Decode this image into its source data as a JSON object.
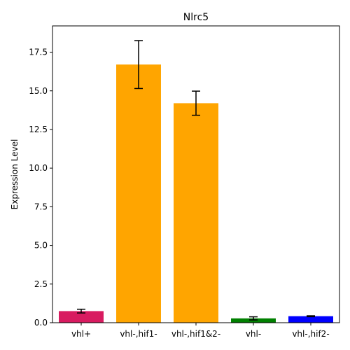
{
  "chart_data": {
    "type": "bar",
    "title": "Nlrc5",
    "xlabel": "",
    "ylabel": "Expression Level",
    "ylim": [
      0,
      19.2
    ],
    "yticks": [
      "0.0",
      "2.5",
      "5.0",
      "7.5",
      "10.0",
      "12.5",
      "15.0",
      "17.5"
    ],
    "categories": [
      "vhl+",
      "vhl-,hif1-",
      "vhl-,hif1&2-",
      "vhl-",
      "vhl-,hif2-"
    ],
    "values": [
      0.75,
      16.7,
      14.2,
      0.28,
      0.42
    ],
    "errors": [
      0.12,
      1.55,
      0.78,
      0.1,
      0.03
    ],
    "colors": [
      "#d81b60",
      "#ffa500",
      "#ffa500",
      "#008000",
      "#0000ff"
    ],
    "grid": false,
    "legend": false
  }
}
